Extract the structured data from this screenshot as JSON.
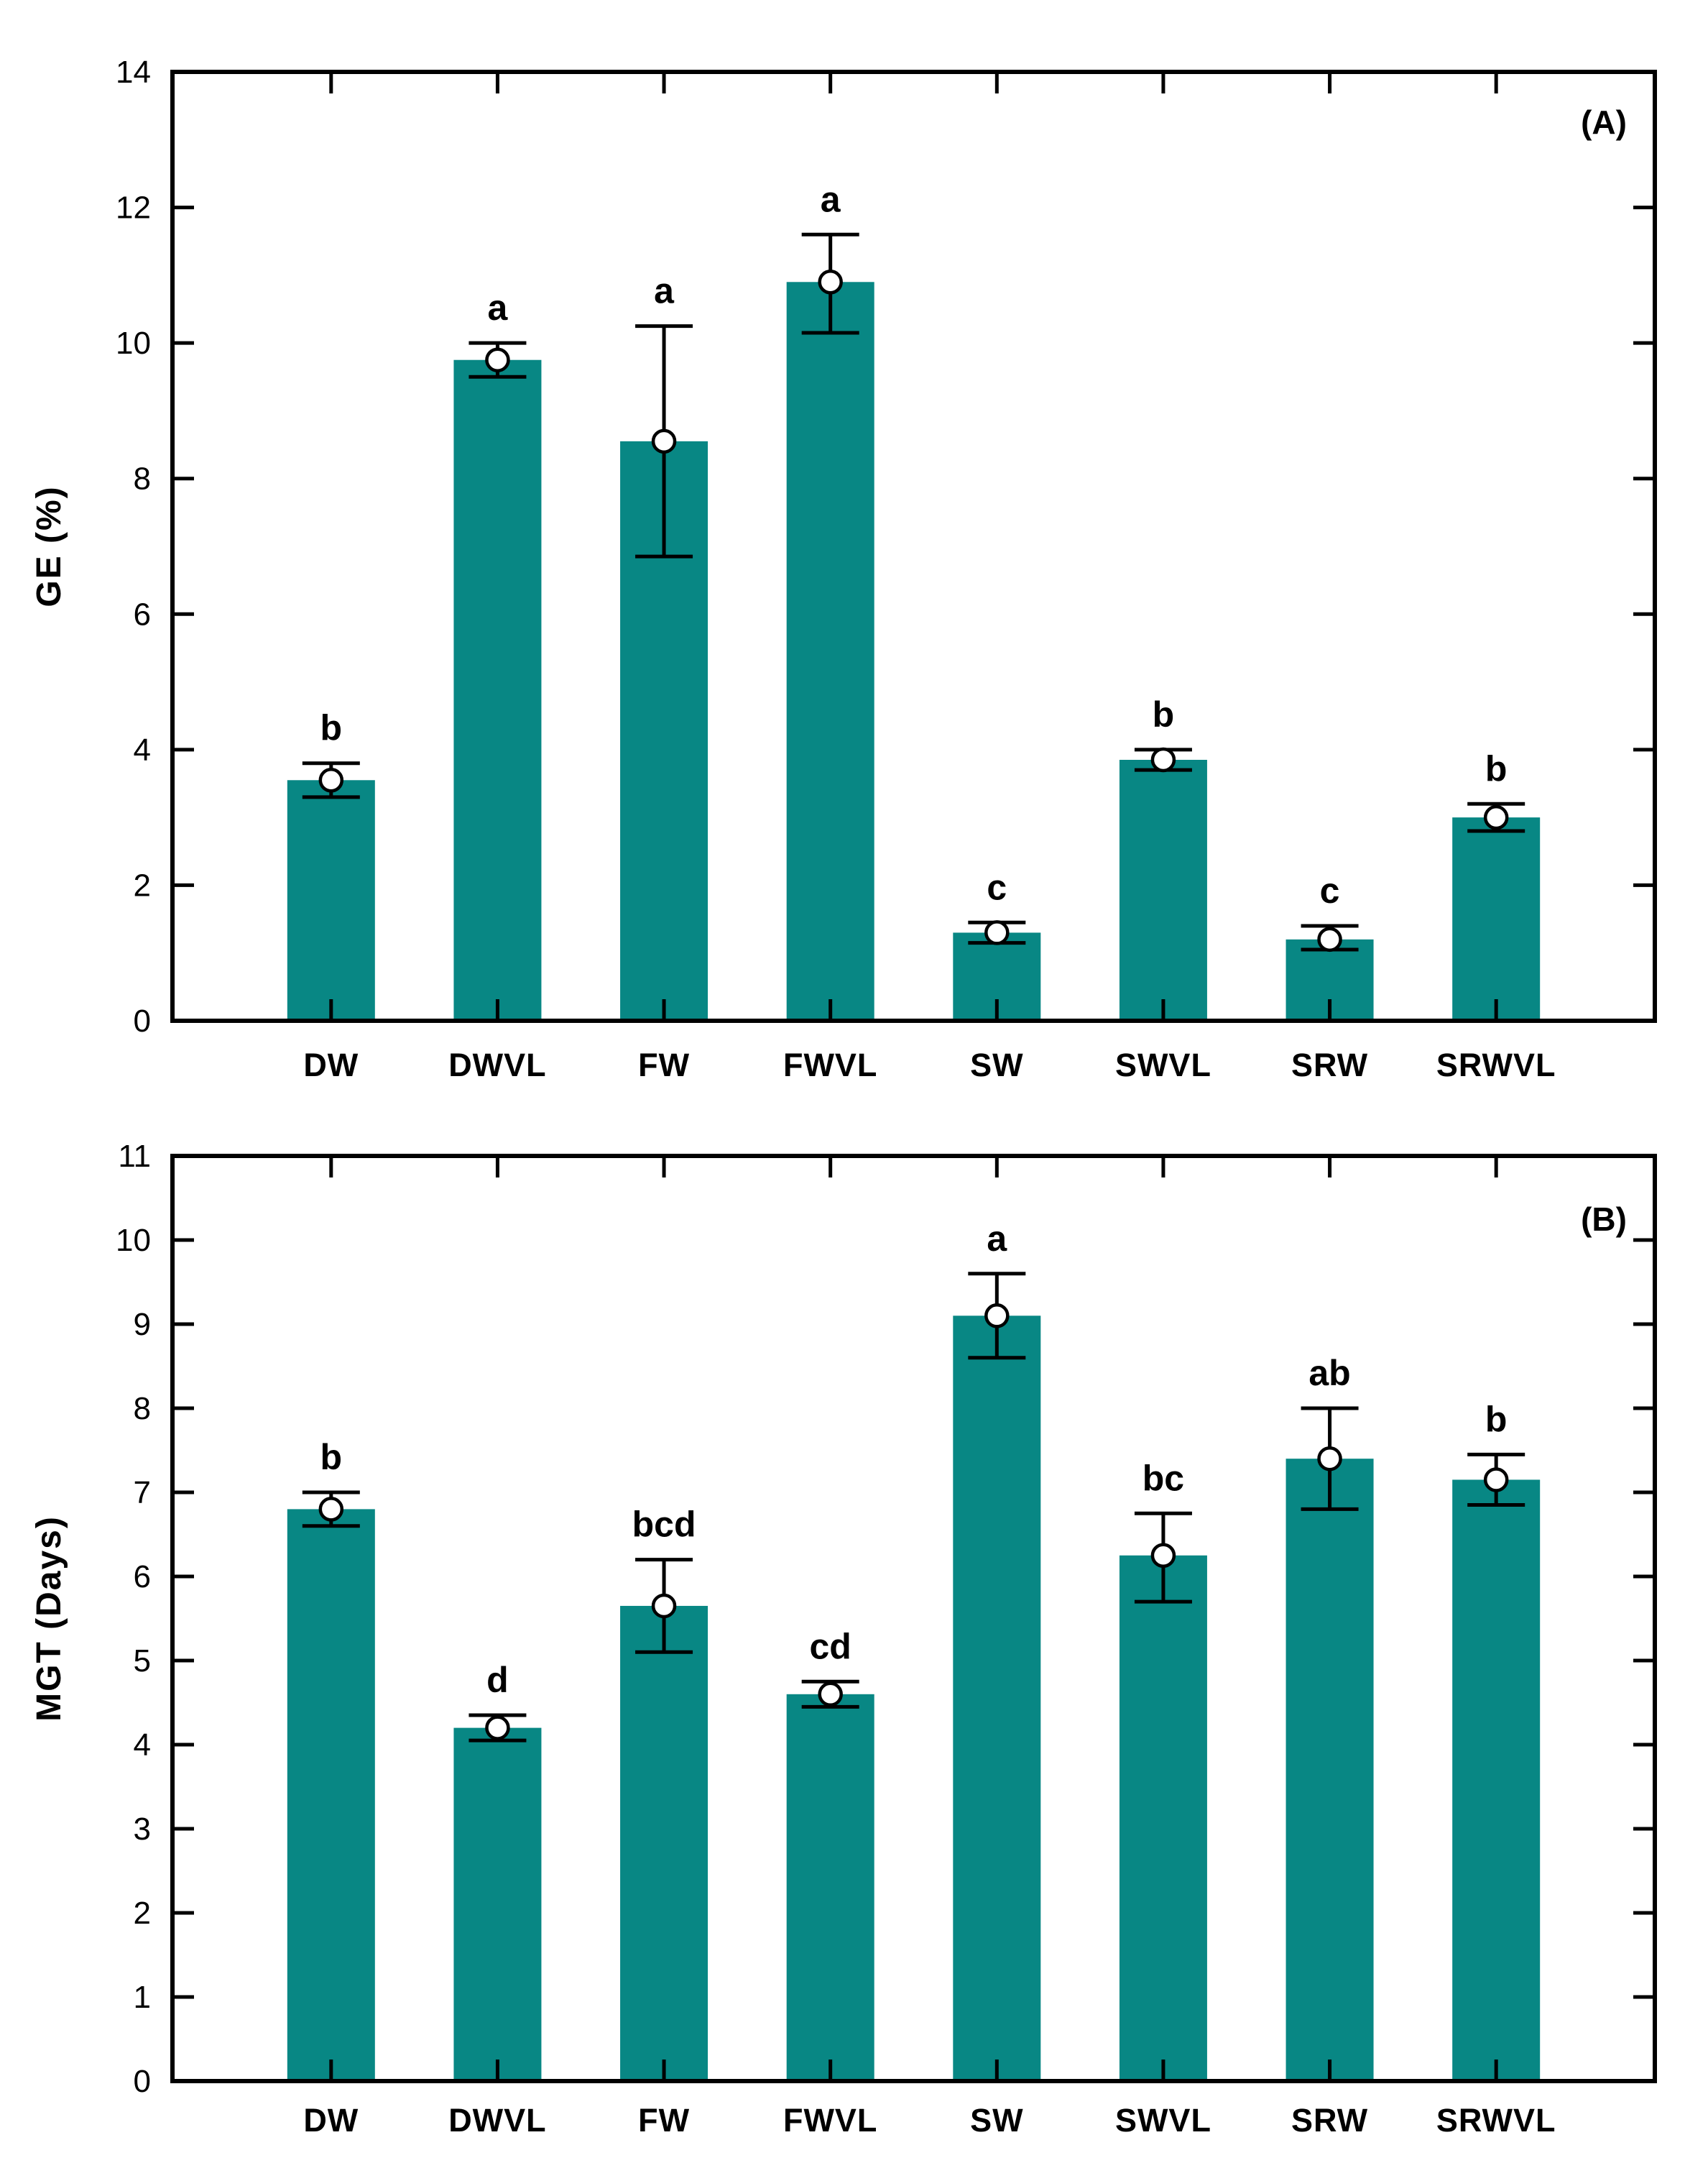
{
  "colors": {
    "bar": "#088784",
    "axis": "#000000",
    "marker_fill": "#ffffff",
    "text": "#000000"
  },
  "chart_data": [
    {
      "type": "bar",
      "panel_label": "(A)",
      "ylabel": "GE (%)",
      "xlabel": "",
      "ylim": [
        0,
        14
      ],
      "ytick_step": 2,
      "ytick_labels": [
        "0",
        "2",
        "4",
        "6",
        "8",
        "10",
        "12",
        "14"
      ],
      "grid": "off",
      "legend": "none",
      "categories": [
        "DW",
        "DWVL",
        "FW",
        "FWVL",
        "SW",
        "SWVL",
        "SRW",
        "SRWVL"
      ],
      "values": [
        3.55,
        9.75,
        8.55,
        10.9,
        1.3,
        3.85,
        1.2,
        3.0
      ],
      "error_low": [
        3.3,
        9.5,
        6.85,
        10.15,
        1.15,
        3.7,
        1.05,
        2.8
      ],
      "error_high": [
        3.8,
        10.0,
        10.25,
        11.6,
        1.45,
        4.0,
        1.4,
        3.2
      ],
      "sig_letters": [
        "b",
        "a",
        "a",
        "a",
        "c",
        "b",
        "c",
        "b"
      ]
    },
    {
      "type": "bar",
      "panel_label": "(B)",
      "ylabel": "MGT (Days)",
      "xlabel": "",
      "ylim": [
        0,
        11
      ],
      "ytick_step": 1,
      "ytick_labels": [
        "0",
        "1",
        "2",
        "3",
        "4",
        "5",
        "6",
        "7",
        "8",
        "9",
        "10",
        "11"
      ],
      "grid": "off",
      "legend": "none",
      "categories": [
        "DW",
        "DWVL",
        "FW",
        "FWVL",
        "SW",
        "SWVL",
        "SRW",
        "SRWVL"
      ],
      "values": [
        6.8,
        4.2,
        5.65,
        4.6,
        9.1,
        6.25,
        7.4,
        7.15
      ],
      "error_low": [
        6.6,
        4.05,
        5.1,
        4.45,
        8.6,
        5.7,
        6.8,
        6.85
      ],
      "error_high": [
        7.0,
        4.35,
        6.2,
        4.75,
        9.6,
        6.75,
        8.0,
        7.45
      ],
      "sig_letters": [
        "b",
        "d",
        "bcd",
        "cd",
        "a",
        "bc",
        "ab",
        "b"
      ]
    }
  ]
}
